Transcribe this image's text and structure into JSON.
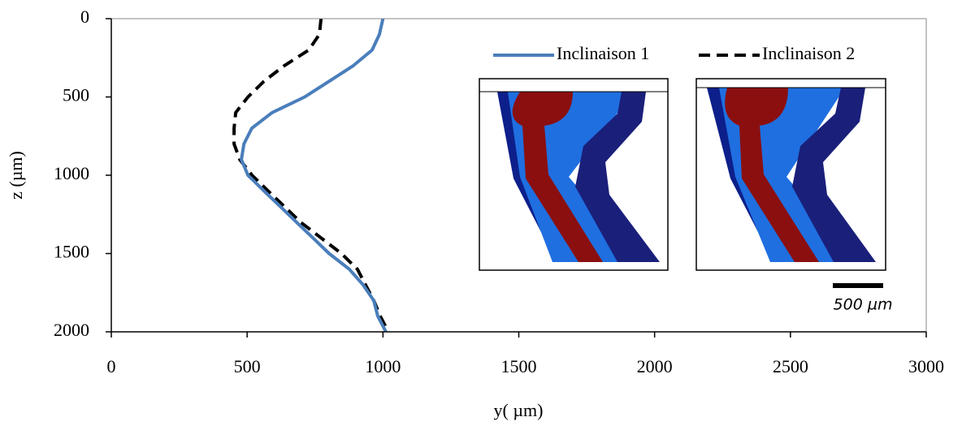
{
  "chart_data": {
    "type": "line",
    "x_label": "y( µm)",
    "y_label": "z (µm)",
    "xlim": [
      0,
      3000
    ],
    "xticks": [
      0,
      500,
      1000,
      1500,
      2000,
      2500,
      3000
    ],
    "ylim": [
      0,
      2000
    ],
    "yticks": [
      0,
      500,
      1000,
      1500,
      2000
    ],
    "y_inverted": true,
    "legend": "top-right",
    "series": [
      {
        "name": "Inclinaison 1",
        "color": "#4a7ebb",
        "dashed": false,
        "x": [
          1000,
          987,
          960,
          891,
          802,
          712,
          592,
          517,
          488,
          479,
          503,
          562,
          622,
          682,
          742,
          802,
          876,
          927,
          966,
          981,
          1011
        ],
        "values": [
          0,
          100,
          200,
          300,
          400,
          500,
          600,
          700,
          800,
          900,
          1000,
          1100,
          1200,
          1300,
          1400,
          1500,
          1600,
          1700,
          1800,
          1900,
          2000
        ]
      },
      {
        "name": "Inclinaison 2",
        "color": "#000000",
        "dashed": true,
        "x": [
          772,
          766,
          727,
          637,
          562,
          503,
          458,
          452,
          452,
          473,
          518,
          577,
          637,
          697,
          772,
          847,
          906,
          936,
          966,
          990,
          1020
        ],
        "values": [
          0,
          100,
          200,
          300,
          400,
          500,
          600,
          700,
          800,
          900,
          1000,
          1100,
          1200,
          1300,
          1400,
          1500,
          1600,
          1700,
          1800,
          1900,
          2000
        ]
      }
    ],
    "scale_bar_label": "500 µm"
  }
}
